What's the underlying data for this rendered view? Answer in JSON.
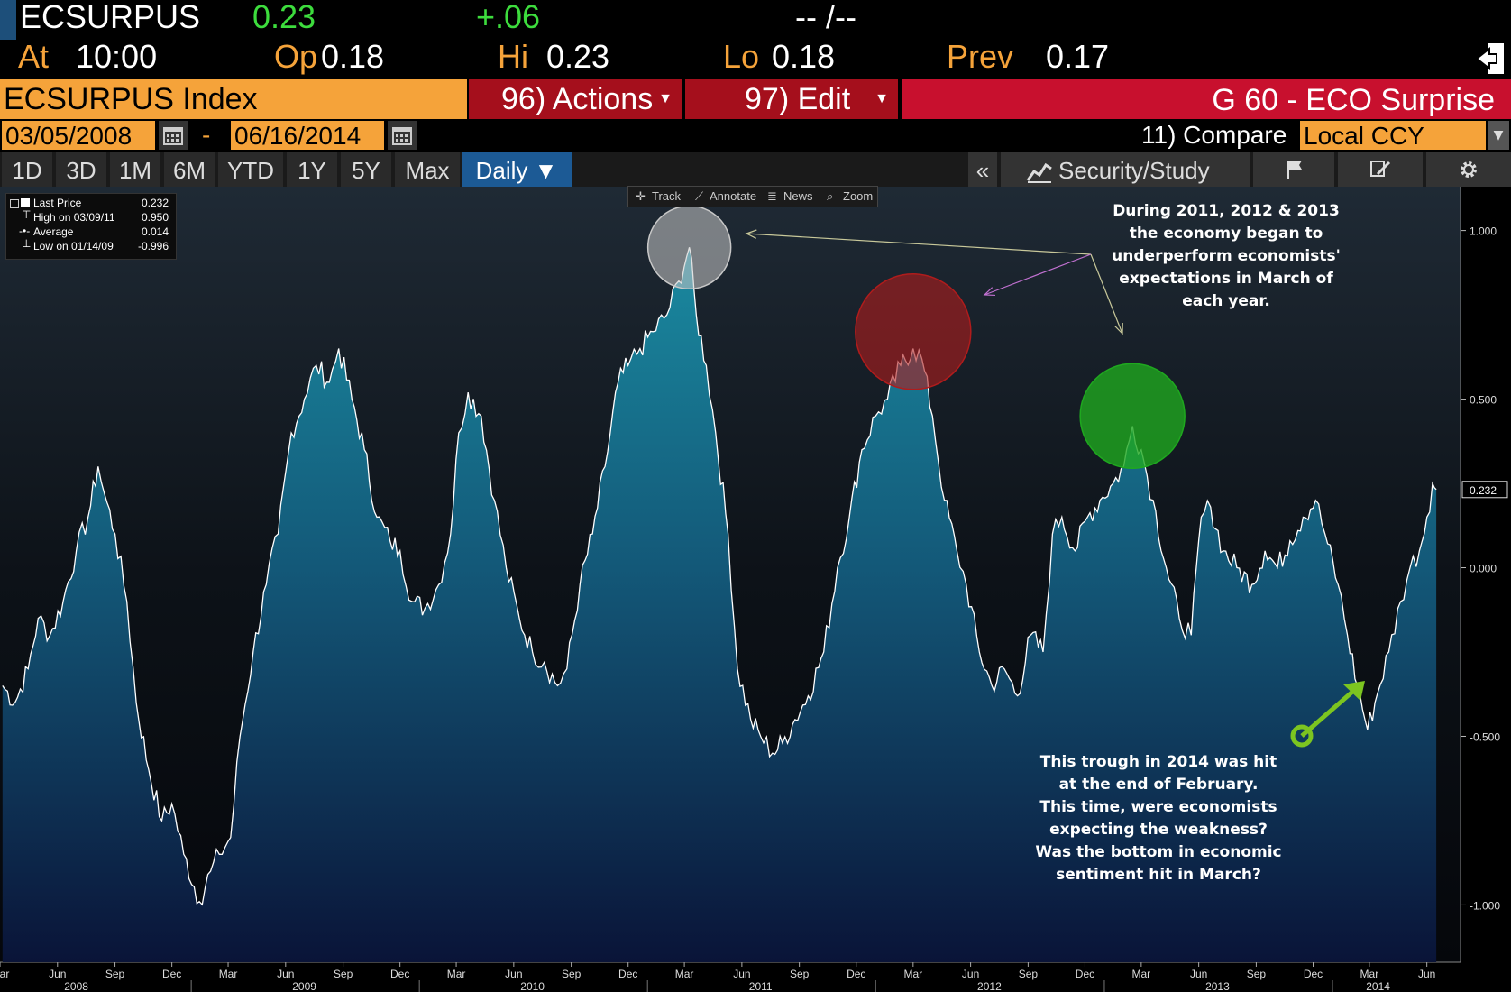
{
  "ticker": {
    "symbol": "ECSURPUS",
    "last": "0.23",
    "change": "+.06",
    "time_placeholder": "-- /--",
    "at_label": "At",
    "at_value": "10:00",
    "op_label": "Op",
    "op_value": "0.18",
    "hi_label": "Hi",
    "hi_value": "0.23",
    "lo_label": "Lo",
    "lo_value": "0.18",
    "prev_label": "Prev",
    "prev_value": "0.17"
  },
  "header": {
    "index_name": "ECSURPUS Index",
    "actions_label": "96) Actions",
    "edit_label": "97) Edit",
    "page_title": "G 60 - ECO Surprise"
  },
  "controls": {
    "start_date": "03/05/2008",
    "date_separator": "-",
    "end_date": "06/16/2014",
    "compare_label": "11) Compare",
    "currency": "Local CCY",
    "ranges": [
      "1D",
      "3D",
      "1M",
      "6M",
      "YTD",
      "1Y",
      "5Y",
      "Max"
    ],
    "frequency": "Daily ▼",
    "collapse": "«",
    "security_study": "Security/Study"
  },
  "chart_tools": [
    "Track",
    "Annotate",
    "News",
    "Zoom"
  ],
  "legend": {
    "rows": [
      {
        "label": "Last Price",
        "value": "0.232"
      },
      {
        "label": "High on 03/09/11",
        "value": "0.950"
      },
      {
        "label": "Average",
        "value": "0.014"
      },
      {
        "label": "Low on 01/14/09",
        "value": "-0.996"
      }
    ]
  },
  "annotations": {
    "top": [
      "During 2011, 2012 & 2013",
      "the economy began to",
      "underperform economists'",
      "expectations in March of",
      "each year."
    ],
    "bottom": [
      "This trough in 2014 was hit",
      "at the end of February.",
      "This time, were economists",
      "expecting the weakness?",
      "Was the bottom in economic",
      "sentiment hit in March?"
    ]
  },
  "colors": {
    "accent_orange": "#f5a33a",
    "brand_red": "#c8102e",
    "up_green": "#3ddc3d",
    "area_top": "#1a8aa0",
    "area_bottom": "#0a1438",
    "circle_white": "#c8c8c8",
    "circle_red": "#b01c1c",
    "circle_green": "#1fa81f",
    "arrow_green": "#7cc520"
  },
  "chart_data": {
    "type": "area",
    "last_value_label": "0.232",
    "y_ticks": [
      1.0,
      0.5,
      0.0,
      -0.5,
      -1.0
    ],
    "y_tick_labels": [
      "1.000",
      "0.500",
      "0.000",
      "-0.500",
      "-1.000"
    ],
    "ylim": [
      -1.17,
      1.13
    ],
    "x_month_ticks": [
      {
        "label": "Mar",
        "date": "2008-03-01"
      },
      {
        "label": "Jun",
        "date": "2008-06-01"
      },
      {
        "label": "Sep",
        "date": "2008-09-01"
      },
      {
        "label": "Dec",
        "date": "2008-12-01"
      },
      {
        "label": "Mar",
        "date": "2009-03-01"
      },
      {
        "label": "Jun",
        "date": "2009-06-01"
      },
      {
        "label": "Sep",
        "date": "2009-09-01"
      },
      {
        "label": "Dec",
        "date": "2009-12-01"
      },
      {
        "label": "Mar",
        "date": "2010-03-01"
      },
      {
        "label": "Jun",
        "date": "2010-06-01"
      },
      {
        "label": "Sep",
        "date": "2010-09-01"
      },
      {
        "label": "Dec",
        "date": "2010-12-01"
      },
      {
        "label": "Mar",
        "date": "2011-03-01"
      },
      {
        "label": "Jun",
        "date": "2011-06-01"
      },
      {
        "label": "Sep",
        "date": "2011-09-01"
      },
      {
        "label": "Dec",
        "date": "2011-12-01"
      },
      {
        "label": "Mar",
        "date": "2012-03-01"
      },
      {
        "label": "Jun",
        "date": "2012-06-01"
      },
      {
        "label": "Sep",
        "date": "2012-09-01"
      },
      {
        "label": "Dec",
        "date": "2012-12-01"
      },
      {
        "label": "Mar",
        "date": "2013-03-01"
      },
      {
        "label": "Jun",
        "date": "2013-06-01"
      },
      {
        "label": "Sep",
        "date": "2013-09-01"
      },
      {
        "label": "Dec",
        "date": "2013-12-01"
      },
      {
        "label": "Mar",
        "date": "2014-03-01"
      },
      {
        "label": "Jun",
        "date": "2014-06-01"
      }
    ],
    "x_year_labels": [
      {
        "label": "2008",
        "date": "2008-07-01"
      },
      {
        "label": "2009",
        "date": "2009-07-01"
      },
      {
        "label": "2010",
        "date": "2010-07-01"
      },
      {
        "label": "2011",
        "date": "2011-07-01"
      },
      {
        "label": "2012",
        "date": "2012-07-01"
      },
      {
        "label": "2013",
        "date": "2013-07-01"
      },
      {
        "label": "2014",
        "date": "2014-03-15"
      }
    ],
    "series": [
      {
        "points": [
          [
            "2008-03-05",
            -0.35
          ],
          [
            "2008-03-25",
            -0.4
          ],
          [
            "2008-04-15",
            -0.3
          ],
          [
            "2008-05-01",
            -0.15
          ],
          [
            "2008-05-20",
            -0.2
          ],
          [
            "2008-06-10",
            -0.1
          ],
          [
            "2008-07-01",
            0.05
          ],
          [
            "2008-07-20",
            0.15
          ],
          [
            "2008-08-05",
            0.3
          ],
          [
            "2008-08-15",
            0.22
          ],
          [
            "2008-09-01",
            0.1
          ],
          [
            "2008-09-20",
            -0.1
          ],
          [
            "2008-10-05",
            -0.4
          ],
          [
            "2008-10-25",
            -0.6
          ],
          [
            "2008-11-15",
            -0.75
          ],
          [
            "2008-12-01",
            -0.7
          ],
          [
            "2008-12-20",
            -0.85
          ],
          [
            "2009-01-14",
            -0.99
          ],
          [
            "2009-02-01",
            -0.9
          ],
          [
            "2009-02-15",
            -0.85
          ],
          [
            "2009-03-05",
            -0.8
          ],
          [
            "2009-03-20",
            -0.5
          ],
          [
            "2009-04-10",
            -0.25
          ],
          [
            "2009-05-01",
            -0.05
          ],
          [
            "2009-05-20",
            0.1
          ],
          [
            "2009-06-10",
            0.4
          ],
          [
            "2009-07-01",
            0.5
          ],
          [
            "2009-07-20",
            0.6
          ],
          [
            "2009-08-10",
            0.55
          ],
          [
            "2009-08-25",
            0.65
          ],
          [
            "2009-09-15",
            0.5
          ],
          [
            "2009-10-05",
            0.35
          ],
          [
            "2009-10-25",
            0.15
          ],
          [
            "2009-11-15",
            0.08
          ],
          [
            "2009-12-01",
            0.05
          ],
          [
            "2009-12-20",
            -0.1
          ],
          [
            "2010-01-10",
            -0.12
          ],
          [
            "2010-02-01",
            -0.05
          ],
          [
            "2010-02-20",
            0.1
          ],
          [
            "2010-03-05",
            0.4
          ],
          [
            "2010-03-20",
            0.52
          ],
          [
            "2010-04-10",
            0.45
          ],
          [
            "2010-05-01",
            0.2
          ],
          [
            "2010-05-20",
            0.0
          ],
          [
            "2010-06-10",
            -0.15
          ],
          [
            "2010-07-01",
            -0.25
          ],
          [
            "2010-07-20",
            -0.28
          ],
          [
            "2010-08-10",
            -0.35
          ],
          [
            "2010-08-25",
            -0.3
          ],
          [
            "2010-09-15",
            -0.05
          ],
          [
            "2010-10-05",
            0.1
          ],
          [
            "2010-10-25",
            0.3
          ],
          [
            "2010-11-15",
            0.55
          ],
          [
            "2010-12-01",
            0.6
          ],
          [
            "2010-12-20",
            0.65
          ],
          [
            "2011-01-10",
            0.7
          ],
          [
            "2011-02-01",
            0.75
          ],
          [
            "2011-02-20",
            0.85
          ],
          [
            "2011-03-09",
            0.95
          ],
          [
            "2011-03-20",
            0.75
          ],
          [
            "2011-04-05",
            0.6
          ],
          [
            "2011-04-20",
            0.4
          ],
          [
            "2011-05-10",
            0.1
          ],
          [
            "2011-05-25",
            -0.3
          ],
          [
            "2011-06-15",
            -0.45
          ],
          [
            "2011-07-01",
            -0.5
          ],
          [
            "2011-07-20",
            -0.55
          ],
          [
            "2011-08-05",
            -0.52
          ],
          [
            "2011-08-25",
            -0.45
          ],
          [
            "2011-09-15",
            -0.38
          ],
          [
            "2011-10-10",
            -0.25
          ],
          [
            "2011-11-01",
            0.0
          ],
          [
            "2011-11-20",
            0.15
          ],
          [
            "2011-12-10",
            0.35
          ],
          [
            "2012-01-01",
            0.45
          ],
          [
            "2012-01-20",
            0.5
          ],
          [
            "2012-02-10",
            0.6
          ],
          [
            "2012-03-01",
            0.65
          ],
          [
            "2012-03-15",
            0.62
          ],
          [
            "2012-04-01",
            0.45
          ],
          [
            "2012-04-20",
            0.2
          ],
          [
            "2012-05-10",
            0.05
          ],
          [
            "2012-05-25",
            -0.05
          ],
          [
            "2012-06-15",
            -0.25
          ],
          [
            "2012-07-05",
            -0.35
          ],
          [
            "2012-07-25",
            -0.3
          ],
          [
            "2012-08-15",
            -0.38
          ],
          [
            "2012-09-05",
            -0.2
          ],
          [
            "2012-09-25",
            -0.25
          ],
          [
            "2012-10-10",
            0.1
          ],
          [
            "2012-10-25",
            0.15
          ],
          [
            "2012-11-15",
            0.05
          ],
          [
            "2012-12-05",
            0.15
          ],
          [
            "2012-12-25",
            0.2
          ],
          [
            "2013-01-15",
            0.25
          ],
          [
            "2013-02-01",
            0.3
          ],
          [
            "2013-02-15",
            0.42
          ],
          [
            "2013-03-01",
            0.35
          ],
          [
            "2013-03-20",
            0.2
          ],
          [
            "2013-04-10",
            0.0
          ],
          [
            "2013-05-01",
            -0.15
          ],
          [
            "2013-05-20",
            -0.2
          ],
          [
            "2013-06-05",
            0.15
          ],
          [
            "2013-06-20",
            0.18
          ],
          [
            "2013-07-10",
            0.05
          ],
          [
            "2013-08-01",
            0.0
          ],
          [
            "2013-08-25",
            -0.05
          ],
          [
            "2013-09-15",
            0.05
          ],
          [
            "2013-10-05",
            0.0
          ],
          [
            "2013-10-25",
            0.08
          ],
          [
            "2013-11-15",
            0.15
          ],
          [
            "2013-12-05",
            0.2
          ],
          [
            "2013-12-20",
            0.1
          ],
          [
            "2014-01-10",
            -0.05
          ],
          [
            "2014-01-25",
            -0.2
          ],
          [
            "2014-02-10",
            -0.35
          ],
          [
            "2014-02-26",
            -0.48
          ],
          [
            "2014-03-10",
            -0.4
          ],
          [
            "2014-04-01",
            -0.25
          ],
          [
            "2014-04-20",
            -0.1
          ],
          [
            "2014-05-05",
            0.0
          ],
          [
            "2014-05-20",
            0.05
          ],
          [
            "2014-06-01",
            0.15
          ],
          [
            "2014-06-10",
            0.25
          ],
          [
            "2014-06-16",
            0.232
          ]
        ]
      }
    ]
  }
}
